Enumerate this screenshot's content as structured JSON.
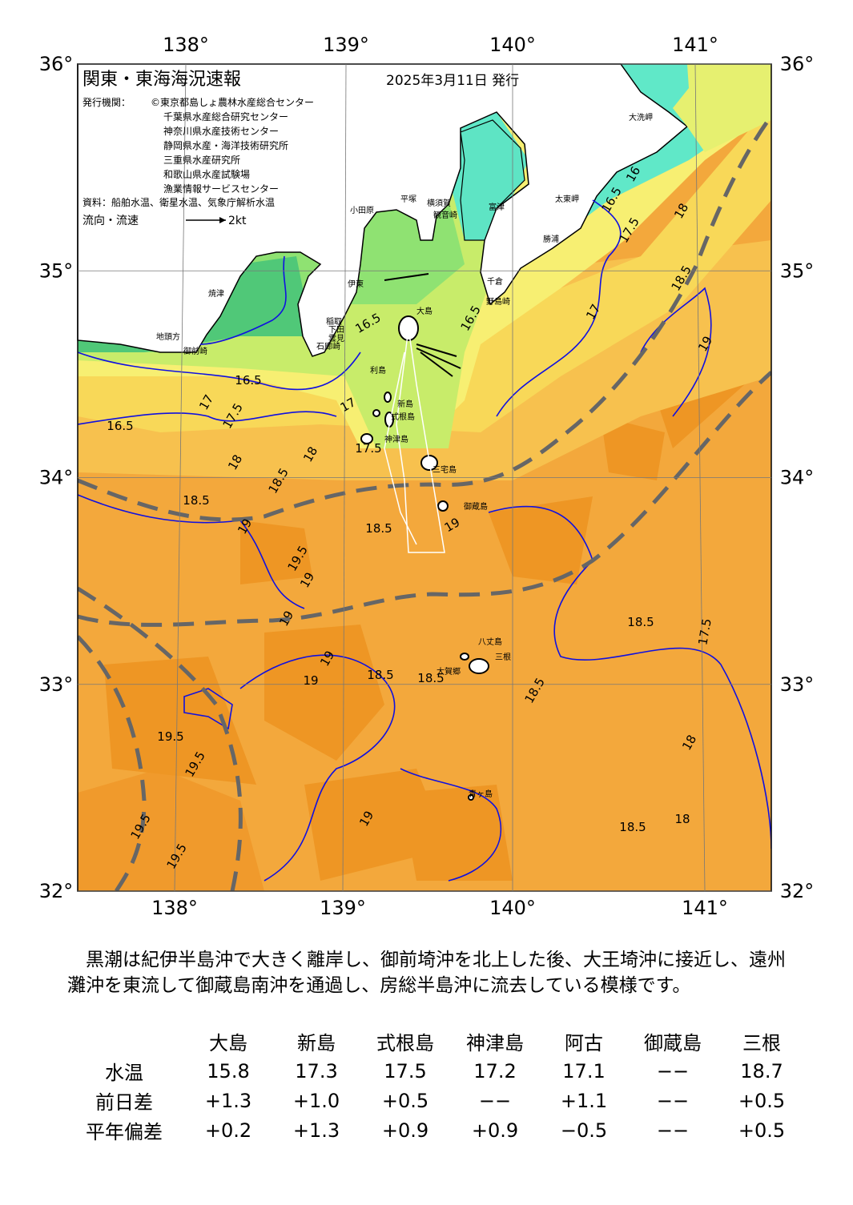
{
  "map": {
    "title": "関東・東海海況速報",
    "issue_date": "2025年3月11日 発行",
    "issuer_label": "発行機関：",
    "issuers": [
      "©東京都島しょ農林水産総合センター",
      "千葉県水産総合研究センター",
      "神奈川県水産技術センター",
      "静岡県水産・海洋技術研究所",
      "三重県水産研究所",
      "和歌山県水産試験場",
      "漁業情報サービスセンター"
    ],
    "source": "資料：船舶水温、衛星水温、気象庁解析水温",
    "legend_label": "流向・流速",
    "legend_speed": "2kt",
    "lon_ticks": [
      {
        "value": 138,
        "label": "138°"
      },
      {
        "value": 139,
        "label": "139°"
      },
      {
        "value": 140,
        "label": "140°"
      },
      {
        "value": 141,
        "label": "141°"
      }
    ],
    "lat_ticks": [
      {
        "value": 36,
        "label": "36°"
      },
      {
        "value": 35,
        "label": "35°"
      },
      {
        "value": 34,
        "label": "34°"
      },
      {
        "value": 33,
        "label": "33°"
      },
      {
        "value": 32,
        "label": "32°"
      }
    ],
    "places": [
      "大洗岬",
      "太東岬",
      "勝浦",
      "野島崎",
      "千倉",
      "富津",
      "横須賀",
      "観音崎",
      "平塚",
      "小田原",
      "伊東",
      "稲取",
      "下田",
      "石廊崎",
      "雲見",
      "焼津",
      "御前崎",
      "地頭方",
      "大島",
      "利島",
      "新島",
      "式根島",
      "神津島",
      "三宅島",
      "御蔵島",
      "八丈島",
      "三根",
      "大賀郷",
      "青ヶ島"
    ],
    "contour_labels": [
      "16",
      "16.5",
      "17.5",
      "18",
      "18.5",
      "19",
      "16.5",
      "17",
      "17.5",
      "18",
      "18.5",
      "16.5",
      "17",
      "17.5",
      "18",
      "18.5",
      "19",
      "19.5",
      "19",
      "19",
      "18.5",
      "19",
      "18.5",
      "19.5",
      "19.5",
      "19",
      "19",
      "18.5",
      "18.5",
      "18",
      "19.5",
      "19.5",
      "19",
      "18.5",
      "18",
      "17.5",
      "18.5",
      "17",
      "16.5",
      "16.5"
    ]
  },
  "summary": {
    "text": "　黒潮は紀伊半島沖で大きく離岸し、御前埼沖を北上した後、大王埼沖に接近し、遠州灘沖を東流して御蔵島南沖を通過し、房総半島沖に流去している模様です。"
  },
  "table": {
    "header": [
      "大島",
      "新島",
      "式根島",
      "神津島",
      "阿古",
      "御蔵島",
      "三根"
    ],
    "rows": [
      [
        "水温",
        "15.8",
        "17.3",
        "17.5",
        "17.2",
        "17.1",
        "−−",
        "18.7"
      ],
      [
        "前日差",
        "+1.3",
        "+1.0",
        "+0.5",
        "−−",
        "+1.1",
        "−−",
        "+0.5"
      ],
      [
        "平年偏差",
        "+0.2",
        "+1.3",
        "+0.9",
        "+0.9",
        "−0.5",
        "−−",
        "+0.5"
      ]
    ]
  }
}
